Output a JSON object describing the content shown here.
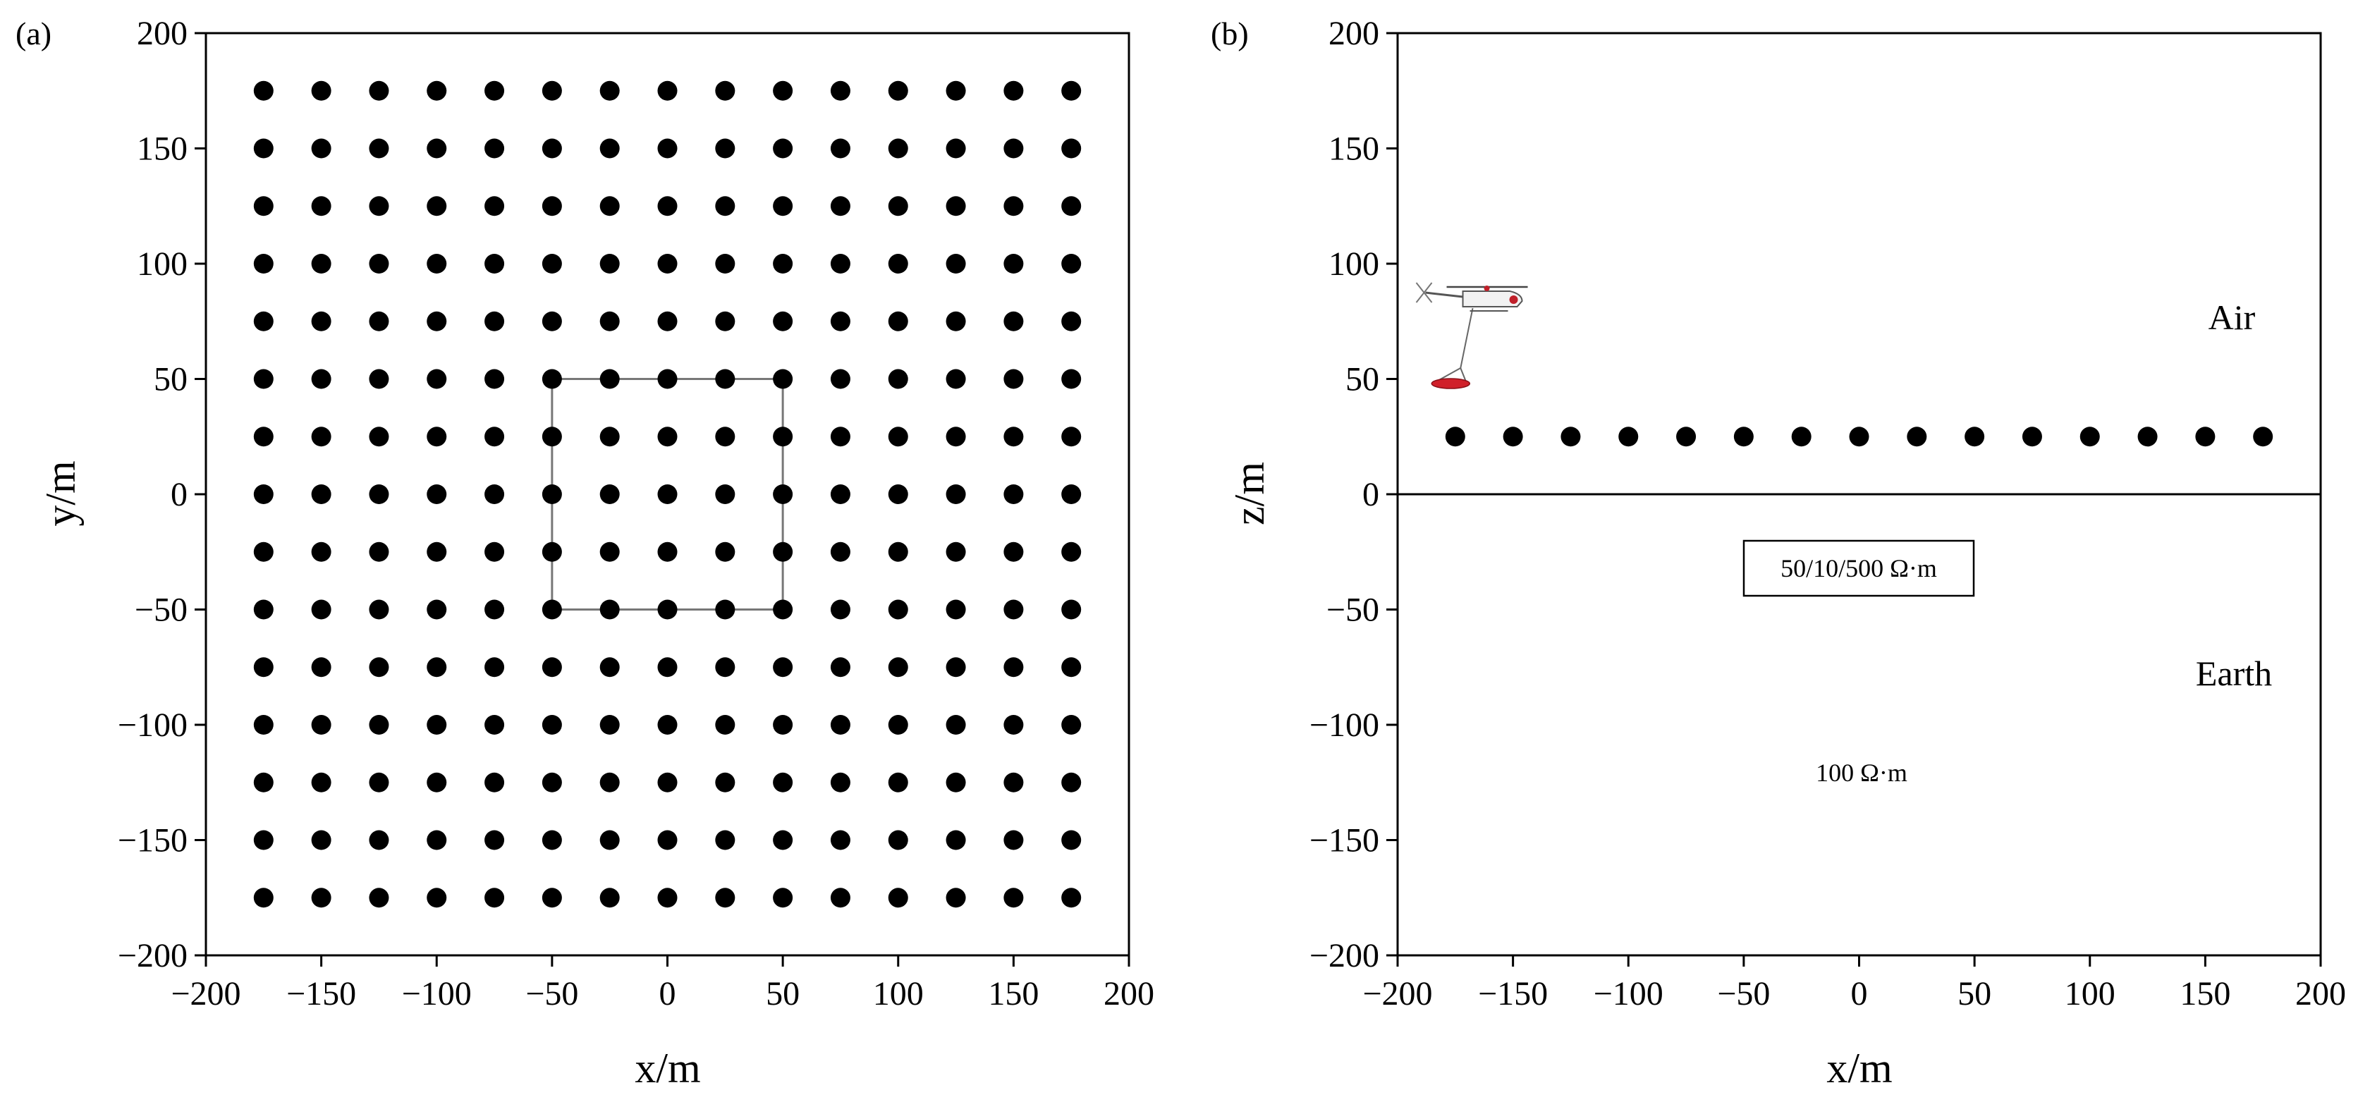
{
  "chart_data": [
    {
      "type": "scatter",
      "panel_label": "(a)",
      "xlabel": "x/m",
      "ylabel": "y/m",
      "xlim": [
        -200,
        200
      ],
      "ylim": [
        -200,
        200
      ],
      "xticks": [
        -200,
        -150,
        -100,
        -50,
        0,
        50,
        100,
        150,
        200
      ],
      "yticks": [
        -200,
        -150,
        -100,
        -50,
        0,
        50,
        100,
        150,
        200
      ],
      "xtick_labels": [
        "−200",
        "−150",
        "−100",
        "−50",
        "0",
        "50",
        "100",
        "150",
        "200"
      ],
      "ytick_labels": [
        "−200",
        "−150",
        "−100",
        "−50",
        "0",
        "50",
        "100",
        "150",
        "200"
      ],
      "points_grid": {
        "x": [
          -175,
          -150,
          -125,
          -100,
          -75,
          -50,
          -25,
          0,
          25,
          50,
          75,
          100,
          125,
          150,
          175
        ],
        "y": [
          -175,
          -150,
          -125,
          -100,
          -75,
          -50,
          -25,
          0,
          25,
          50,
          75,
          100,
          125,
          150,
          175
        ]
      },
      "anomaly_box": {
        "x": [
          -50,
          50
        ],
        "y": [
          -50,
          50
        ]
      },
      "grid": false
    },
    {
      "type": "scatter",
      "panel_label": "(b)",
      "xlabel": "x/m",
      "ylabel": "z/m",
      "xlim": [
        -200,
        200
      ],
      "ylim": [
        -200,
        200
      ],
      "xticks": [
        -200,
        -150,
        -100,
        -50,
        0,
        50,
        100,
        150,
        200
      ],
      "yticks": [
        -200,
        -150,
        -100,
        -50,
        0,
        50,
        100,
        150,
        200
      ],
      "xtick_labels": [
        "−200",
        "−150",
        "−100",
        "−50",
        "0",
        "50",
        "100",
        "150",
        "200"
      ],
      "ytick_labels": [
        "−200",
        "−150",
        "−100",
        "−50",
        "0",
        "50",
        "100",
        "150",
        "200"
      ],
      "points": {
        "x": [
          -175,
          -150,
          -125,
          -100,
          -75,
          -50,
          -25,
          0,
          25,
          50,
          75,
          100,
          125,
          150,
          175
        ],
        "z": 25
      },
      "surface_z": 0,
      "air_label": "Air",
      "earth_label": "Earth",
      "anomaly_label": "50/10/500 Ω·m",
      "background_label": "100 Ω·m",
      "helicopter": {
        "x": -165,
        "z": 85,
        "loop_x": -177,
        "loop_z": 48,
        "loop_color": "#d0202a"
      },
      "grid": false
    }
  ]
}
